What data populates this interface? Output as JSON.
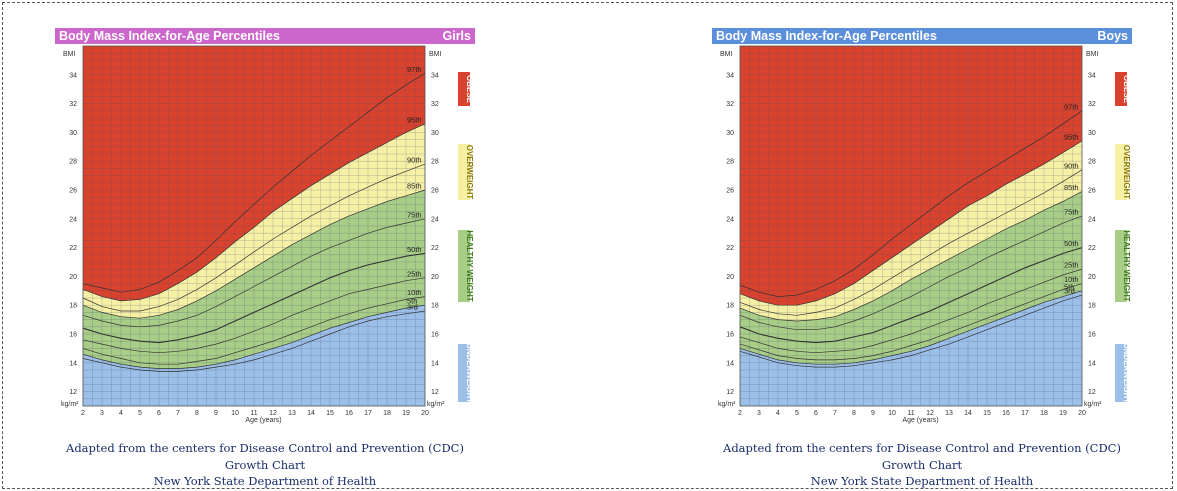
{
  "colors": {
    "obese": "#d9422d",
    "overweight": "#f6f0a4",
    "healthy": "#a8cd86",
    "underweight": "#9cbfe7",
    "girls_header": "#cc66cc",
    "boys_header": "#5b8fdb",
    "grid": "#3c4f78",
    "curve": "#333333",
    "band_text_obese": "#ffffff",
    "band_text_overweight": "#8a7b00",
    "band_text_healthy": "#3c7a1c",
    "band_text_underweight": "#ffffff"
  },
  "captions": {
    "girls": [
      "Adapted from the centers for Disease Control and Prevention (CDC)",
      "Growth Chart",
      "New York State Department of Health"
    ],
    "boys": [
      "Adapted from the centers for Disease Control and Prevention (CDC)",
      "Growth Chart",
      "New York State Department of Health"
    ]
  },
  "chart_data": [
    {
      "type": "line",
      "title": "Body Mass Index-for-Age Percentiles",
      "subtitle": "Girls",
      "xlabel": "Age (years)",
      "ylabel": "BMI",
      "unit_label": "kg/m²",
      "xlim": [
        2,
        20
      ],
      "ylim": [
        11,
        36
      ],
      "x_ticks": [
        2,
        3,
        4,
        5,
        6,
        7,
        8,
        9,
        10,
        11,
        12,
        13,
        14,
        15,
        16,
        17,
        18,
        19,
        20
      ],
      "y_ticks": [
        12,
        14,
        16,
        18,
        20,
        22,
        24,
        26,
        28,
        30,
        32,
        34
      ],
      "grid": true,
      "band_labels": [
        "OBESE",
        "OVERWEIGHT",
        "HEALTHY WEIGHT",
        "UNDERWEIGHT"
      ],
      "x": [
        2,
        3,
        4,
        5,
        6,
        7,
        8,
        9,
        10,
        11,
        12,
        13,
        14,
        15,
        16,
        17,
        18,
        19,
        20
      ],
      "series": [
        {
          "name": "3rd",
          "values": [
            14.3,
            14.0,
            13.7,
            13.5,
            13.4,
            13.4,
            13.5,
            13.7,
            13.9,
            14.2,
            14.6,
            15.0,
            15.5,
            16.0,
            16.5,
            16.9,
            17.2,
            17.4,
            17.6
          ]
        },
        {
          "name": "5th",
          "values": [
            14.6,
            14.2,
            13.9,
            13.7,
            13.6,
            13.6,
            13.7,
            13.9,
            14.2,
            14.6,
            15.0,
            15.4,
            15.9,
            16.4,
            16.8,
            17.2,
            17.5,
            17.8,
            18.0
          ]
        },
        {
          "name": "10th",
          "values": [
            15.0,
            14.6,
            14.3,
            14.0,
            13.9,
            13.9,
            14.1,
            14.3,
            14.7,
            15.1,
            15.5,
            16.0,
            16.5,
            17.0,
            17.4,
            17.8,
            18.1,
            18.4,
            18.6
          ]
        },
        {
          "name": "25th",
          "values": [
            15.6,
            15.3,
            15.0,
            14.8,
            14.7,
            14.8,
            15.0,
            15.3,
            15.7,
            16.2,
            16.7,
            17.3,
            17.8,
            18.3,
            18.8,
            19.1,
            19.4,
            19.7,
            19.9
          ]
        },
        {
          "name": "50th",
          "values": [
            16.4,
            16.0,
            15.7,
            15.5,
            15.4,
            15.6,
            15.9,
            16.3,
            16.9,
            17.5,
            18.1,
            18.7,
            19.3,
            19.9,
            20.4,
            20.8,
            21.1,
            21.4,
            21.6
          ]
        },
        {
          "name": "75th",
          "values": [
            17.3,
            16.9,
            16.6,
            16.5,
            16.6,
            16.9,
            17.3,
            17.9,
            18.6,
            19.3,
            20.0,
            20.7,
            21.4,
            22.0,
            22.5,
            23.0,
            23.4,
            23.7,
            24.0
          ]
        },
        {
          "name": "85th",
          "values": [
            18.0,
            17.5,
            17.2,
            17.1,
            17.3,
            17.7,
            18.3,
            19.0,
            19.8,
            20.6,
            21.4,
            22.2,
            22.9,
            23.6,
            24.2,
            24.7,
            25.2,
            25.6,
            26.0
          ]
        },
        {
          "name": "90th",
          "values": [
            18.5,
            17.9,
            17.6,
            17.6,
            17.9,
            18.4,
            19.1,
            19.9,
            20.8,
            21.7,
            22.6,
            23.4,
            24.2,
            24.9,
            25.6,
            26.2,
            26.8,
            27.3,
            27.8
          ]
        },
        {
          "name": "95th",
          "values": [
            19.1,
            18.6,
            18.3,
            18.4,
            18.8,
            19.5,
            20.3,
            21.3,
            22.4,
            23.4,
            24.5,
            25.4,
            26.3,
            27.1,
            27.9,
            28.6,
            29.3,
            30.0,
            30.6
          ]
        },
        {
          "name": "97th",
          "values": [
            19.5,
            19.2,
            18.9,
            19.1,
            19.6,
            20.4,
            21.3,
            22.5,
            23.8,
            25.0,
            26.2,
            27.3,
            28.4,
            29.4,
            30.4,
            31.4,
            32.4,
            33.3,
            34.1
          ]
        }
      ]
    },
    {
      "type": "line",
      "title": "Body Mass Index-for-Age Percentiles",
      "subtitle": "Boys",
      "xlabel": "Age (years)",
      "ylabel": "BMI",
      "unit_label": "kg/m²",
      "xlim": [
        2,
        20
      ],
      "ylim": [
        11,
        36
      ],
      "x_ticks": [
        2,
        3,
        4,
        5,
        6,
        7,
        8,
        9,
        10,
        11,
        12,
        13,
        14,
        15,
        16,
        17,
        18,
        19,
        20
      ],
      "y_ticks": [
        12,
        14,
        16,
        18,
        20,
        22,
        24,
        26,
        28,
        30,
        32,
        34
      ],
      "grid": true,
      "band_labels": [
        "OBESE",
        "OVERWEIGHT",
        "HEALTHY WEIGHT",
        "UNDERWEIGHT"
      ],
      "x": [
        2,
        3,
        4,
        5,
        6,
        7,
        8,
        9,
        10,
        11,
        12,
        13,
        14,
        15,
        16,
        17,
        18,
        19,
        20
      ],
      "series": [
        {
          "name": "3rd",
          "values": [
            14.8,
            14.4,
            14.0,
            13.8,
            13.7,
            13.7,
            13.8,
            14.0,
            14.2,
            14.5,
            14.9,
            15.3,
            15.8,
            16.3,
            16.8,
            17.3,
            17.8,
            18.3,
            18.7
          ]
        },
        {
          "name": "5th",
          "values": [
            15.0,
            14.6,
            14.2,
            14.0,
            13.9,
            13.9,
            14.0,
            14.2,
            14.5,
            14.8,
            15.2,
            15.7,
            16.2,
            16.7,
            17.2,
            17.7,
            18.2,
            18.6,
            19.0
          ]
        },
        {
          "name": "10th",
          "values": [
            15.3,
            14.9,
            14.5,
            14.3,
            14.2,
            14.2,
            14.3,
            14.5,
            14.8,
            15.2,
            15.6,
            16.1,
            16.6,
            17.1,
            17.6,
            18.1,
            18.6,
            19.1,
            19.5
          ]
        },
        {
          "name": "25th",
          "values": [
            15.8,
            15.4,
            15.0,
            14.8,
            14.7,
            14.8,
            14.9,
            15.2,
            15.6,
            16.0,
            16.5,
            17.0,
            17.5,
            18.1,
            18.6,
            19.1,
            19.6,
            20.1,
            20.5
          ]
        },
        {
          "name": "50th",
          "values": [
            16.5,
            16.0,
            15.7,
            15.5,
            15.4,
            15.5,
            15.8,
            16.1,
            16.6,
            17.1,
            17.6,
            18.2,
            18.8,
            19.4,
            20.0,
            20.6,
            21.1,
            21.6,
            22.0
          ]
        },
        {
          "name": "75th",
          "values": [
            17.3,
            16.8,
            16.5,
            16.3,
            16.3,
            16.5,
            16.9,
            17.4,
            18.0,
            18.6,
            19.3,
            20.0,
            20.6,
            21.3,
            21.9,
            22.5,
            23.1,
            23.7,
            24.2
          ]
        },
        {
          "name": "85th",
          "values": [
            17.8,
            17.3,
            17.0,
            16.9,
            17.0,
            17.2,
            17.7,
            18.3,
            19.0,
            19.8,
            20.5,
            21.2,
            21.9,
            22.6,
            23.3,
            23.9,
            24.6,
            25.2,
            25.9
          ]
        },
        {
          "name": "90th",
          "values": [
            18.2,
            17.7,
            17.4,
            17.3,
            17.5,
            17.8,
            18.4,
            19.1,
            19.9,
            20.7,
            21.5,
            22.3,
            23.0,
            23.7,
            24.4,
            25.1,
            25.8,
            26.6,
            27.4
          ]
        },
        {
          "name": "95th",
          "values": [
            18.8,
            18.3,
            18.0,
            18.0,
            18.3,
            18.8,
            19.5,
            20.4,
            21.3,
            22.2,
            23.1,
            24.0,
            24.9,
            25.6,
            26.4,
            27.1,
            27.8,
            28.6,
            29.4
          ]
        },
        {
          "name": "97th",
          "values": [
            19.4,
            18.9,
            18.6,
            18.7,
            19.1,
            19.7,
            20.5,
            21.5,
            22.6,
            23.6,
            24.6,
            25.6,
            26.5,
            27.3,
            28.1,
            28.9,
            29.7,
            30.6,
            31.5
          ]
        }
      ]
    }
  ]
}
